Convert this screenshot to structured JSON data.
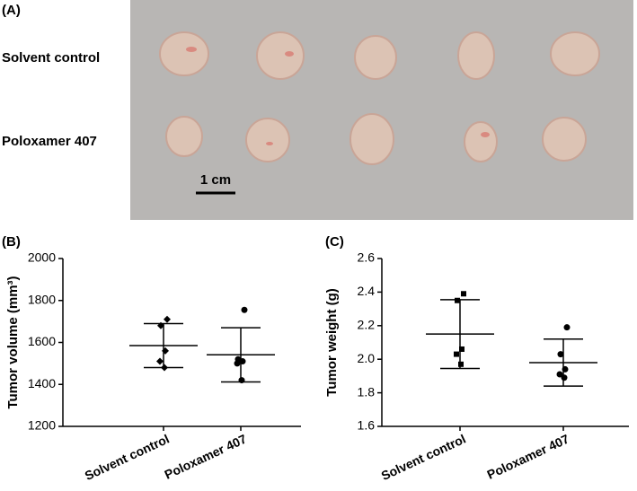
{
  "photo": {
    "label": "(A)",
    "rows": [
      "Solvent control",
      "Poloxamer 407"
    ],
    "scale_bar": "1 cm"
  },
  "chart_data": [
    {
      "type": "dotplot",
      "label": "(B)",
      "ylabel": "Tumor volume (mm³)",
      "categories": [
        "Solvent control",
        "Poloxamer 407"
      ],
      "markers": [
        "diamond",
        "circle"
      ],
      "color": "#000000",
      "points": [
        [
          1710,
          1680,
          1560,
          1510,
          1480
        ],
        [
          1755,
          1520,
          1510,
          1500,
          1420
        ]
      ],
      "mean": [
        1585,
        1541
      ],
      "sd": [
        105,
        129
      ],
      "ylim": [
        1200,
        2000
      ],
      "yticks": [
        1200,
        1400,
        1600,
        1800,
        2000
      ]
    },
    {
      "type": "dotplot",
      "label": "(C)",
      "ylabel": "Tumor weight (g)",
      "categories": [
        "Solvent control",
        "Poloxamer 407"
      ],
      "markers": [
        "square",
        "circle"
      ],
      "color": "#000000",
      "points": [
        [
          2.39,
          2.35,
          2.06,
          2.03,
          1.97
        ],
        [
          2.19,
          2.03,
          1.94,
          1.91,
          1.89
        ]
      ],
      "mean": [
        2.15,
        1.98
      ],
      "sd": [
        0.205,
        0.14
      ],
      "ylim": [
        1.6,
        2.6
      ],
      "yticks": [
        1.6,
        1.8,
        {
          "value": 2,
          "label": "2.0"
        },
        2.2,
        2.4,
        2.6
      ]
    }
  ]
}
